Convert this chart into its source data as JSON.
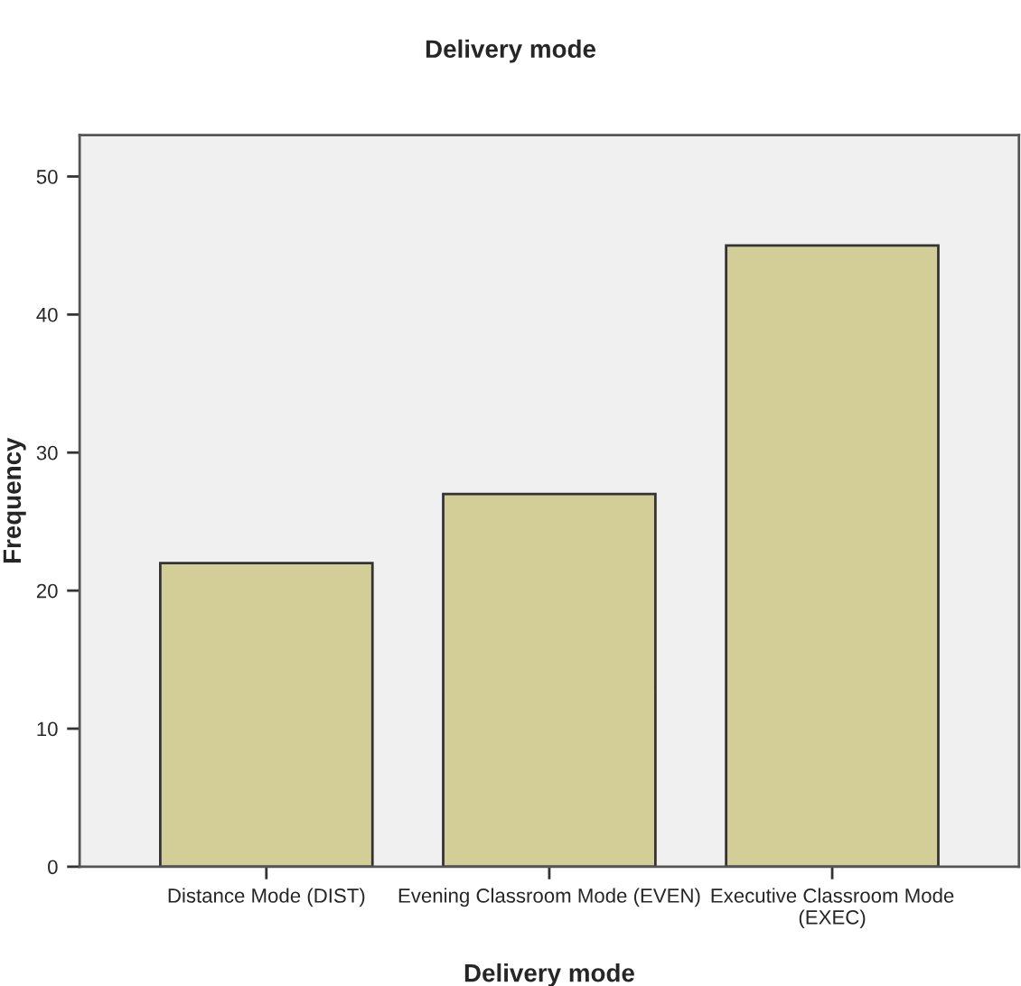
{
  "chart_data": {
    "type": "bar",
    "title": "Delivery mode",
    "xlabel": "Delivery mode",
    "ylabel": "Frequency",
    "categories": [
      "Distance Mode (DIST)",
      "Evening Classroom Mode (EVEN)",
      "Executive Classroom Mode\n(EXEC)"
    ],
    "values": [
      22,
      27,
      45
    ],
    "color": "#d3ce98",
    "ylim": [
      0,
      53
    ],
    "yticks": [
      0,
      10,
      20,
      30,
      40,
      50
    ],
    "grid": false,
    "legend": false
  }
}
